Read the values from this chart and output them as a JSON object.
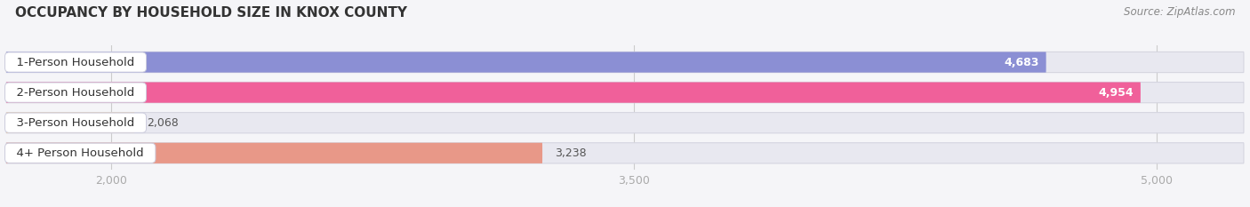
{
  "title": "OCCUPANCY BY HOUSEHOLD SIZE IN KNOX COUNTY",
  "source": "Source: ZipAtlas.com",
  "categories": [
    "1-Person Household",
    "2-Person Household",
    "3-Person Household",
    "4+ Person Household"
  ],
  "values": [
    4683,
    4954,
    2068,
    3238
  ],
  "bar_colors": [
    "#8b8fd4",
    "#f0609a",
    "#f5cb98",
    "#e89888"
  ],
  "xlim_min": 1700,
  "xlim_max": 5250,
  "data_min": 0,
  "xticks": [
    2000,
    3500,
    5000
  ],
  "label_inside": [
    true,
    true,
    false,
    false
  ],
  "value_colors_inside": [
    "white",
    "white",
    "#555555",
    "#555555"
  ],
  "title_fontsize": 11,
  "source_fontsize": 8.5,
  "bar_label_fontsize": 9,
  "category_label_fontsize": 9.5,
  "tick_fontsize": 9,
  "background_color": "#f5f5f8",
  "bar_bg_color": "#e8e8f0",
  "bar_bg_edge_color": "#d5d5e0",
  "pill_bg": "#ffffff",
  "pill_edge": "#ddddee"
}
